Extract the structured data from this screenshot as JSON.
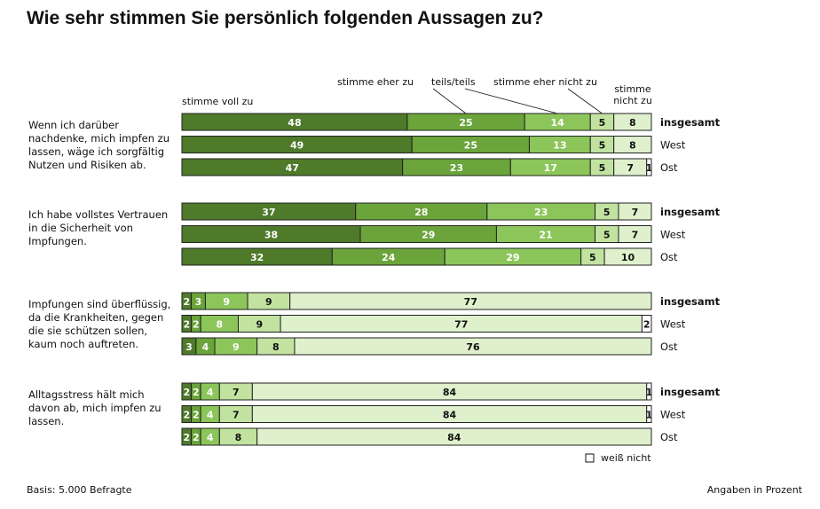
{
  "title": "Wie sehr stimmen Sie persönlich folgenden Aussagen zu?",
  "basis": "Basis: 5.000 Befragte",
  "unit_note": "Angaben in Prozent",
  "colors": {
    "c0": "#4e7a2a",
    "c1": "#6aa43a",
    "c2": "#8cc65a",
    "c3": "#c2e2a0",
    "c4": "#dff0cc",
    "c5": "#ffffff",
    "stroke": "#222222"
  },
  "chart_data": {
    "type": "bar",
    "orientation": "horizontal",
    "stacked": true,
    "normalized": true,
    "unit": "%",
    "xlim": [
      0,
      100
    ],
    "legend": [
      "stimme voll zu",
      "stimme eher zu",
      "teils/teils",
      "stimme eher nicht zu",
      "stimme nicht zu",
      "weiß nicht"
    ],
    "legend_top": {
      "voll": "stimme voll zu",
      "eher": "stimme eher zu",
      "teils": "teils/teils",
      "ehernicht": "stimme eher nicht zu",
      "nicht1": "stimme",
      "nicht2": "nicht zu"
    },
    "groups": [
      {
        "statement": [
          "Wenn ich darüber",
          "nachdenke, mich impfen zu",
          "lassen, wäge ich sorgfältig",
          "Nutzen und Risiken ab."
        ],
        "rows": [
          {
            "label": "insgesamt",
            "values": [
              48,
              25,
              14,
              5,
              8,
              0
            ]
          },
          {
            "label": "West",
            "values": [
              49,
              25,
              13,
              5,
              8,
              0
            ]
          },
          {
            "label": "Ost",
            "values": [
              47,
              23,
              17,
              5,
              7,
              1
            ]
          }
        ]
      },
      {
        "statement": [
          "Ich habe vollstes Vertrauen",
          "in die Sicherheit von",
          "Impfungen."
        ],
        "rows": [
          {
            "label": "insgesamt",
            "values": [
              37,
              28,
              23,
              5,
              7,
              0
            ]
          },
          {
            "label": "West",
            "values": [
              38,
              29,
              21,
              5,
              7,
              0
            ]
          },
          {
            "label": "Ost",
            "values": [
              32,
              24,
              29,
              5,
              10,
              0
            ]
          }
        ]
      },
      {
        "statement": [
          "Impfungen sind überflüssig,",
          "da die Krankheiten, gegen",
          "die sie schützen sollen,",
          "kaum noch auftreten."
        ],
        "rows": [
          {
            "label": "insgesamt",
            "values": [
              2,
              3,
              9,
              9,
              77,
              0
            ]
          },
          {
            "label": "West",
            "values": [
              2,
              2,
              8,
              9,
              77,
              2
            ]
          },
          {
            "label": "Ost",
            "values": [
              3,
              4,
              9,
              8,
              76,
              0
            ]
          }
        ]
      },
      {
        "statement": [
          "Alltagsstress hält mich",
          "davon ab, mich impfen zu",
          "lassen."
        ],
        "rows": [
          {
            "label": "insgesamt",
            "values": [
              2,
              2,
              4,
              7,
              84,
              1
            ]
          },
          {
            "label": "West",
            "values": [
              2,
              2,
              4,
              7,
              84,
              1
            ]
          },
          {
            "label": "Ost",
            "values": [
              2,
              2,
              4,
              8,
              84,
              0
            ]
          }
        ]
      }
    ],
    "legend_bottom": "weiß nicht"
  }
}
